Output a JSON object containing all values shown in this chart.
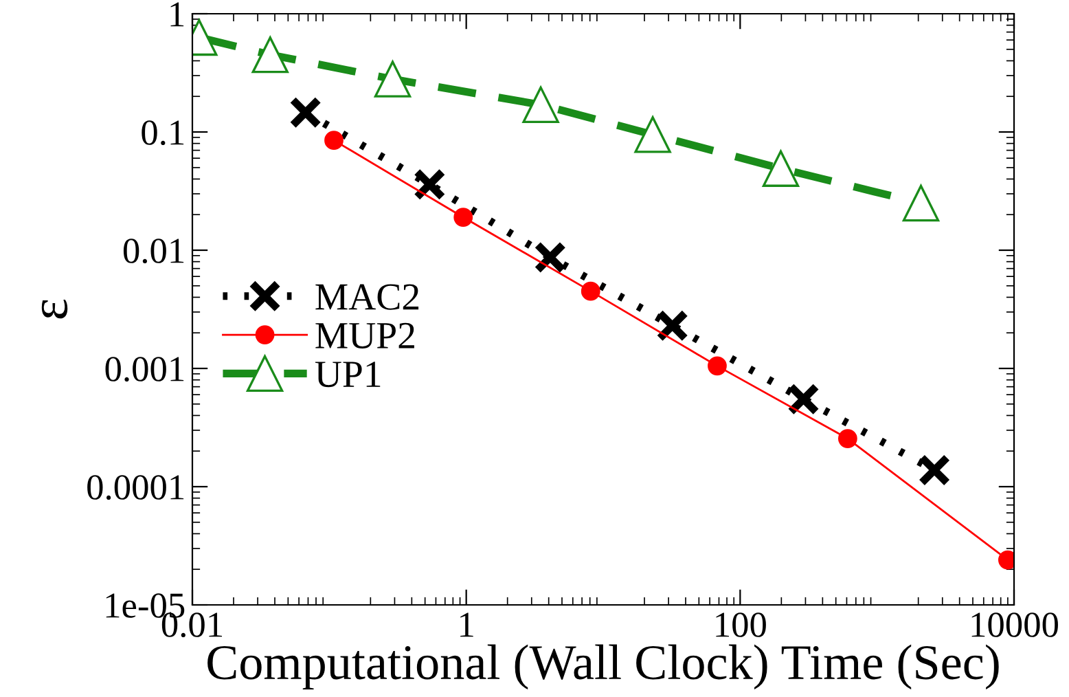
{
  "chart_data": {
    "type": "line",
    "xlabel": "Computational (Wall Clock) Time (Sec)",
    "ylabel": "ε",
    "log": "xy",
    "xlim": [
      0.01,
      10000
    ],
    "xticks": [
      0.01,
      1,
      100,
      10000
    ],
    "ylim": [
      1e-05,
      1
    ],
    "yticks": [
      {
        "value": 1e-05,
        "label": "1e-05"
      },
      0.0001,
      0.001,
      0.01,
      0.1,
      1
    ],
    "grid": false,
    "legend": "left",
    "series": [
      {
        "name": "MAC2",
        "color": "#000000",
        "marker": "cross",
        "line_style": "dotted",
        "x": [
          0.067,
          0.54,
          4.1,
          32,
          290,
          2620
        ],
        "values": [
          0.146,
          0.036,
          0.0087,
          0.0023,
          0.00055,
          0.000138
        ]
      },
      {
        "name": "MUP2",
        "color": "#ff0000",
        "marker": "circle",
        "line_style": "solid",
        "x": [
          0.108,
          0.95,
          8.1,
          68,
          610,
          9000
        ],
        "values": [
          0.085,
          0.019,
          0.0045,
          0.00105,
          0.000255,
          2.4e-05
        ]
      },
      {
        "name": "UP1",
        "color": "#1a8c1a",
        "marker": "triangle",
        "line_style": "dashed",
        "x": [
          0.0112,
          0.037,
          0.29,
          3.5,
          23,
          198,
          2090
        ],
        "values": [
          0.63,
          0.45,
          0.28,
          0.17,
          0.095,
          0.049,
          0.025
        ]
      }
    ]
  }
}
